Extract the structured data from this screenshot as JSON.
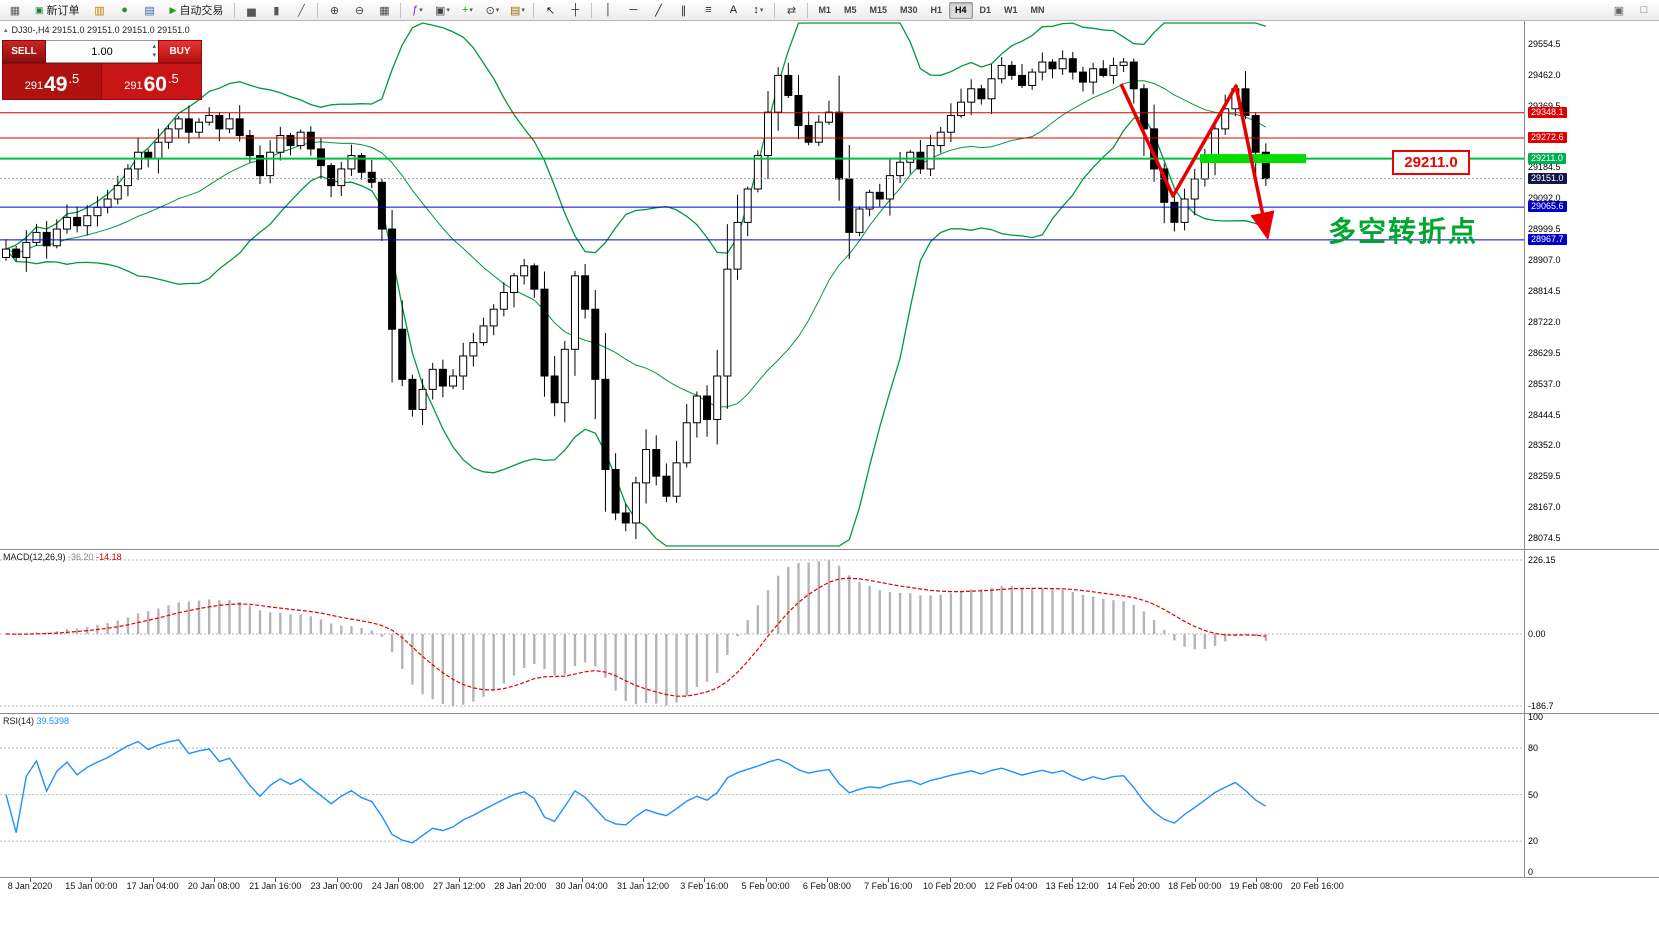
{
  "icons": {
    "spinner_up": "▴",
    "spinner_down": "▾",
    "dropdown": "▾",
    "collapse": "▴"
  },
  "toolbar": {
    "items": [
      {
        "type": "icon",
        "name": "app-icon",
        "glyph": "▦",
        "color": "#5a5a5a"
      },
      {
        "type": "button",
        "name": "new-order-button",
        "glyph": "▣",
        "glyph_color": "#1a7f37",
        "label": "新订单"
      },
      {
        "type": "icon",
        "name": "charts-window-icon",
        "glyph": "▥",
        "color": "#c07800"
      },
      {
        "type": "icon",
        "name": "market-watch-icon",
        "glyph": "●",
        "color": "#2e8b2e"
      },
      {
        "type": "icon",
        "name": "data-window-icon",
        "glyph": "▤",
        "color": "#3465a4"
      },
      {
        "type": "button",
        "name": "auto-trading-button",
        "glyph": "▶",
        "glyph_color": "#18a018",
        "label": "自动交易"
      },
      {
        "type": "sep"
      },
      {
        "type": "icon",
        "name": "bar-chart-icon",
        "glyph": "▅",
        "color": "#555555"
      },
      {
        "type": "icon",
        "name": "candlestick-chart-icon",
        "glyph": "▮",
        "color": "#555555"
      },
      {
        "type": "icon",
        "name": "line-chart-icon",
        "glyph": "╱",
        "color": "#555555"
      },
      {
        "type": "sep"
      },
      {
        "type": "icon",
        "name": "zoom-in-icon",
        "glyph": "⊕",
        "color": "#444444"
      },
      {
        "type": "icon",
        "name": "zoom-out-icon",
        "glyph": "⊖",
        "color": "#444444"
      },
      {
        "type": "icon",
        "name": "tile-windows-icon",
        "glyph": "▦",
        "color": "#444444"
      },
      {
        "type": "sep"
      },
      {
        "type": "icon",
        "name": "indicators-icon",
        "glyph": "ƒ",
        "color": "#7a2bd2",
        "dropdown": true
      },
      {
        "type": "icon",
        "name": "objects-icon",
        "glyph": "▣",
        "color": "#444444",
        "dropdown": true
      },
      {
        "type": "icon",
        "name": "new-chart-icon",
        "glyph": "+",
        "color": "#18a018",
        "dropdown": true
      },
      {
        "type": "icon",
        "name": "period-icon",
        "glyph": "⊙",
        "color": "#444444",
        "dropdown": true
      },
      {
        "type": "icon",
        "name": "template-icon",
        "glyph": "▤",
        "color": "#9a6a00",
        "dropdown": true
      },
      {
        "type": "sep"
      },
      {
        "type": "icon",
        "name": "cursor-icon",
        "glyph": "↖",
        "color": "#222222"
      },
      {
        "type": "icon",
        "name": "crosshair-icon",
        "glyph": "┼",
        "color": "#222222"
      },
      {
        "type": "sep"
      },
      {
        "type": "icon",
        "name": "vertical-line-icon",
        "glyph": "│",
        "color": "#222222"
      },
      {
        "type": "icon",
        "name": "horizontal-line-icon",
        "glyph": "─",
        "color": "#222222"
      },
      {
        "type": "icon",
        "name": "trendline-icon",
        "glyph": "╱",
        "color": "#222222"
      },
      {
        "type": "icon",
        "name": "channel-icon",
        "glyph": "∥",
        "color": "#222222"
      },
      {
        "type": "icon",
        "name": "fibonacci-icon",
        "glyph": "≡",
        "color": "#222222"
      },
      {
        "type": "icon",
        "name": "text-icon",
        "glyph": "A",
        "color": "#222222"
      },
      {
        "type": "icon",
        "name": "arrows-icon",
        "glyph": "↕",
        "color": "#222222",
        "dropdown": true
      },
      {
        "type": "sep"
      },
      {
        "type": "icon",
        "name": "chart-shift-icon",
        "glyph": "⇄",
        "color": "#444444"
      },
      {
        "type": "sep"
      },
      {
        "type": "timeframes"
      },
      {
        "type": "spacer"
      },
      {
        "type": "icon",
        "name": "dock-icon",
        "glyph": "▣",
        "color": "#666666"
      },
      {
        "type": "icon",
        "name": "restore-window-icon",
        "glyph": "□",
        "color": "#666666"
      }
    ],
    "timeframes": {
      "items": [
        "M1",
        "M5",
        "M15",
        "M30",
        "H1",
        "H4",
        "D1",
        "W1",
        "MN"
      ],
      "active": "H4"
    }
  },
  "chart": {
    "ohlc_header": "DJ30-,H4  29151.0 29151.0 29151.0 29151.0",
    "trade_panel": {
      "sell_label": "SELL",
      "buy_label": "BUY",
      "volume": "1.00",
      "sell_price": {
        "full": "29149.5",
        "prefix": "291",
        "big": "49",
        "frac": ".5"
      },
      "buy_price": {
        "full": "29160.5",
        "prefix": "291",
        "big": "60",
        "frac": ".5"
      }
    },
    "annotations": {
      "price_box": "29211.0",
      "cn_text": "多空转折点",
      "arrow_color": "#e80000",
      "highlight_color": "#00dd00"
    },
    "price_axis": {
      "regular": [
        "29554.5",
        "29462.0",
        "29369.5",
        "29277.0",
        "29184.5",
        "29092.0",
        "28999.5",
        "28907.0",
        "28814.5",
        "28722.0",
        "28629.5",
        "28537.0",
        "28444.5",
        "28352.0",
        "28259.5",
        "28167.0",
        "28074.5"
      ],
      "special": [
        {
          "label": "29348.1",
          "price": 29348.1,
          "bg": "#e00000"
        },
        {
          "label": "29272.6",
          "price": 29272.6,
          "bg": "#e00000"
        },
        {
          "label": "29211.0",
          "price": 29211.0,
          "bg": "#00b050"
        },
        {
          "label": "29151.0",
          "price": 29151.0,
          "bg": "#15154d"
        },
        {
          "label": "29065.6",
          "price": 29065.6,
          "bg": "#0000cc"
        },
        {
          "label": "28967.7",
          "price": 28967.7,
          "bg": "#0000cc"
        }
      ]
    },
    "levels": [
      {
        "price": 29348.1,
        "color": "#e00000",
        "w": 1
      },
      {
        "price": 29272.6,
        "color": "#e00000",
        "w": 1
      },
      {
        "price": 29211.0,
        "color": "#00c040",
        "w": 2
      },
      {
        "price": 29151.0,
        "color": "#9a9a9a",
        "w": 1,
        "dash": "2,2"
      },
      {
        "price": 29065.6,
        "color": "#0000cc",
        "w": 1
      },
      {
        "price": 28967.7,
        "color": "#0000cc",
        "w": 1
      }
    ],
    "time_axis": [
      "8 Jan 2020",
      "15 Jan 00:00",
      "17 Jan 04:00",
      "20 Jan 08:00",
      "21 Jan 16:00",
      "23 Jan 00:00",
      "24 Jan 08:00",
      "27 Jan 12:00",
      "28 Jan 20:00",
      "30 Jan 04:00",
      "31 Jan 12:00",
      "3 Feb 16:00",
      "5 Feb 00:00",
      "6 Feb 08:00",
      "7 Feb 16:00",
      "10 Feb 20:00",
      "12 Feb 04:00",
      "13 Feb 12:00",
      "14 Feb 20:00",
      "18 Feb 00:00",
      "19 Feb 08:00",
      "20 Feb 16:00"
    ]
  },
  "indicators": {
    "macd": {
      "label": "MACD(12,26,9)",
      "value_main": "-36.20",
      "value_signal": "-14.18",
      "axis": [
        "226.15",
        "0.00",
        "-186.7"
      ],
      "hist_color": "#b4b4b4",
      "signal_color": "#e00000"
    },
    "rsi": {
      "label": "RSI(14)",
      "value": "39.5398",
      "axis": [
        "100",
        "80",
        "50",
        "20",
        "0"
      ],
      "line_color": "#1e90ff"
    }
  },
  "chart_data": {
    "type": "candlestick",
    "title": "DJ30-,H4",
    "symbol": "DJ30-",
    "timeframe": "H4",
    "y_range": [
      28048,
      29620
    ],
    "band_color": "#00993c",
    "horizontal_lines": [
      29348.1,
      29272.6,
      29211.0,
      29065.6,
      28967.7
    ],
    "current_price": 29151.0,
    "bid": "29149.5",
    "ask": "29160.5",
    "closes": [
      28940,
      28915,
      28960,
      28990,
      28950,
      29000,
      29035,
      29010,
      29040,
      29065,
      29090,
      29130,
      29180,
      29230,
      29210,
      29260,
      29300,
      29330,
      29290,
      29320,
      29340,
      29300,
      29330,
      29280,
      29220,
      29160,
      29230,
      29280,
      29250,
      29290,
      29240,
      29190,
      29130,
      29180,
      29220,
      29170,
      29140,
      29000,
      28700,
      28550,
      28460,
      28520,
      28580,
      28530,
      28560,
      28620,
      28660,
      28710,
      28760,
      28810,
      28860,
      28890,
      28820,
      28560,
      28480,
      28640,
      28860,
      28760,
      28550,
      28280,
      28150,
      28120,
      28240,
      28340,
      28260,
      28200,
      28300,
      28420,
      28500,
      28430,
      28560,
      28880,
      29020,
      29120,
      29220,
      29350,
      29460,
      29400,
      29310,
      29260,
      29320,
      29350,
      29150,
      28990,
      29060,
      29110,
      29090,
      29160,
      29200,
      29230,
      29180,
      29250,
      29290,
      29340,
      29380,
      29420,
      29390,
      29450,
      29490,
      29460,
      29430,
      29470,
      29500,
      29480,
      29510,
      29470,
      29440,
      29480,
      29460,
      29490,
      29500,
      29420,
      29300,
      29180,
      29080,
      29020,
      29090,
      29150,
      29220,
      29300,
      29360,
      29420,
      29340,
      29230,
      29151
    ],
    "indicators": {
      "bollinger": "20,2 (green)",
      "macd": {
        "params": "12,26,9",
        "current_main": -36.2,
        "current_signal": -14.18,
        "panel_max": 226.15,
        "panel_min": -186.7
      },
      "rsi": {
        "params": "14",
        "current": 39.5398
      }
    }
  }
}
